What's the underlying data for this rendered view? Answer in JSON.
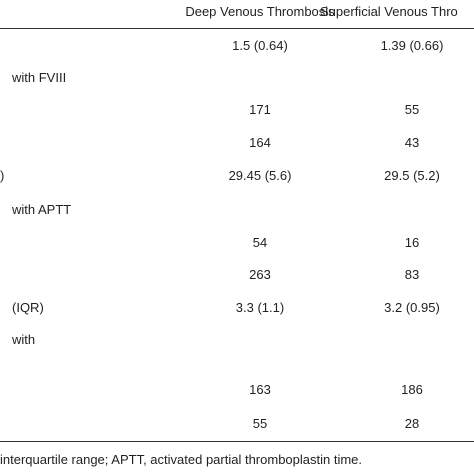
{
  "table": {
    "header": [
      "Deep Venous Thrombosis",
      "Superficial Venous Thro"
    ],
    "rows": [
      [
        "",
        "1.5 (0.64)",
        "1.39 (0.66)"
      ],
      [
        "with FVIII",
        "",
        ""
      ],
      [
        "",
        "171",
        "55"
      ],
      [
        "",
        "164",
        "43"
      ],
      [
        ")",
        "29.45 (5.6)",
        "29.5 (5.2)"
      ],
      [
        "with APTT",
        "",
        ""
      ],
      [
        "",
        "54",
        "16"
      ],
      [
        "",
        "263",
        "83"
      ],
      [
        "(IQR)",
        "3.3 (1.1)",
        "3.2 (0.95)"
      ],
      [
        "with",
        "",
        ""
      ],
      [
        "",
        "163",
        "186"
      ],
      [
        "",
        "55",
        "28"
      ]
    ]
  },
  "footnote": "interquartile range; APTT, activated partial thromboplastin time."
}
